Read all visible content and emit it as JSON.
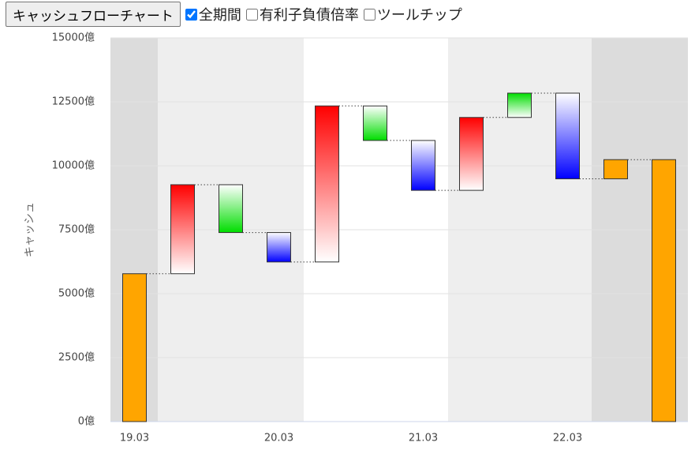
{
  "controls": {
    "button": "キャッシュフローチャート",
    "checkboxes": [
      {
        "label": "全期間",
        "checked": true
      },
      {
        "label": "有利子負債倍率",
        "checked": false
      },
      {
        "label": "ツールチップ",
        "checked": false
      }
    ]
  },
  "chart_data": {
    "type": "waterfall",
    "y_label": "キャッシュ",
    "categories": [
      "19.03",
      null,
      null,
      "20.03",
      null,
      null,
      "21.03",
      null,
      null,
      "22.03",
      null,
      null
    ],
    "values": [
      5780,
      3480,
      -1870,
      -1150,
      6100,
      -1350,
      -1950,
      2850,
      950,
      -3350,
      750,
      10240
    ],
    "totals": [
      true,
      false,
      false,
      false,
      false,
      false,
      false,
      false,
      false,
      false,
      false,
      true
    ],
    "colors": [
      "#ffa500",
      "#ff0000",
      "#00dd00",
      "#0000ff",
      "#ff0000",
      "#00dd00",
      "#0000ff",
      "#ff0000",
      "#00dd00",
      "#0000ff",
      "#ffa500",
      "#ffa500"
    ],
    "gradient": [
      false,
      true,
      true,
      true,
      true,
      true,
      true,
      true,
      true,
      true,
      false,
      false
    ],
    "ylim": [
      0,
      15000
    ],
    "yticks": [
      {
        "value": 0,
        "label": "0億"
      },
      {
        "value": 2500,
        "label": "2500億"
      },
      {
        "value": 5000,
        "label": "5000億"
      },
      {
        "value": 7500,
        "label": "7500億"
      },
      {
        "value": 10000,
        "label": "10000億"
      },
      {
        "value": 12500,
        "label": "12500億"
      },
      {
        "value": 15000,
        "label": "15000億"
      }
    ],
    "grid": true
  }
}
